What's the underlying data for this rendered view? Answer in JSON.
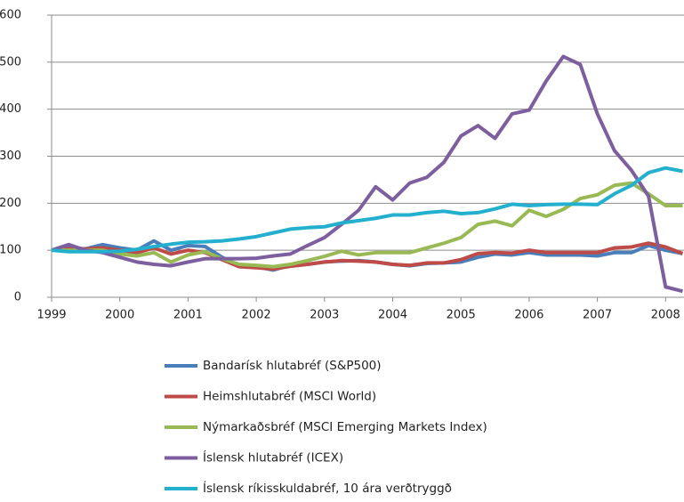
{
  "chart_data": {
    "type": "line",
    "x": [
      1999,
      1999.25,
      1999.5,
      1999.75,
      2000,
      2000.25,
      2000.5,
      2000.75,
      2001,
      2001.25,
      2001.5,
      2001.75,
      2002,
      2002.25,
      2002.5,
      2002.75,
      2003,
      2003.25,
      2003.5,
      2003.75,
      2004,
      2004.25,
      2004.5,
      2004.75,
      2005,
      2005.25,
      2005.5,
      2005.75,
      2006,
      2006.25,
      2006.5,
      2006.75,
      2007,
      2007.25,
      2007.5,
      2007.75,
      2008,
      2008.25
    ],
    "xlim": [
      1999,
      2008.27
    ],
    "xticks": [
      1999,
      2000,
      2001,
      2002,
      2003,
      2004,
      2005,
      2006,
      2007,
      2008
    ],
    "ylim": [
      0,
      600
    ],
    "yticks": [
      0,
      100,
      200,
      300,
      400,
      500,
      600
    ],
    "grid": true,
    "series": [
      {
        "name": "Bandarísk hlutabréf (S&P500)",
        "color": "#4a7ebb",
        "values": [
          100,
          105,
          103,
          112,
          105,
          100,
          120,
          100,
          110,
          108,
          85,
          67,
          65,
          58,
          68,
          70,
          75,
          77,
          78,
          75,
          70,
          67,
          72,
          73,
          75,
          85,
          92,
          90,
          95,
          90,
          90,
          90,
          88,
          95,
          95,
          110,
          100,
          93
        ]
      },
      {
        "name": "Heimshlutabréf (MSCI World)",
        "color": "#be4b48",
        "values": [
          100,
          103,
          103,
          105,
          100,
          95,
          105,
          92,
          100,
          95,
          80,
          65,
          63,
          60,
          66,
          70,
          75,
          78,
          77,
          75,
          70,
          68,
          73,
          73,
          80,
          93,
          95,
          94,
          100,
          95,
          95,
          95,
          95,
          105,
          107,
          115,
          107,
          93
        ]
      },
      {
        "name": "Nýmarkaðsbréf (MSCI Emerging Markets Index)",
        "color": "#98b954",
        "values": [
          100,
          100,
          100,
          100,
          92,
          88,
          95,
          75,
          90,
          97,
          82,
          70,
          68,
          65,
          70,
          78,
          87,
          98,
          90,
          95,
          95,
          95,
          105,
          115,
          127,
          155,
          162,
          152,
          185,
          172,
          187,
          210,
          218,
          238,
          243,
          220,
          195,
          195
        ]
      },
      {
        "name": "Íslensk hlutabréf (ICEX)",
        "color": "#7d5fa0",
        "values": [
          100,
          112,
          100,
          95,
          85,
          75,
          70,
          67,
          75,
          82,
          82,
          82,
          83,
          88,
          92,
          110,
          127,
          155,
          185,
          235,
          207,
          243,
          255,
          287,
          343,
          365,
          338,
          390,
          398,
          460,
          512,
          495,
          390,
          312,
          270,
          215,
          22,
          13
        ]
      },
      {
        "name": "Íslensk ríkisskuldabréf, 10 ára verðtryggð",
        "color": "#23b0cf",
        "values": [
          100,
          97,
          97,
          97,
          98,
          102,
          108,
          113,
          117,
          118,
          120,
          124,
          129,
          137,
          145,
          148,
          150,
          158,
          163,
          168,
          175,
          175,
          180,
          183,
          178,
          180,
          188,
          198,
          195,
          197,
          198,
          198,
          197,
          220,
          238,
          265,
          275,
          268
        ]
      }
    ]
  }
}
